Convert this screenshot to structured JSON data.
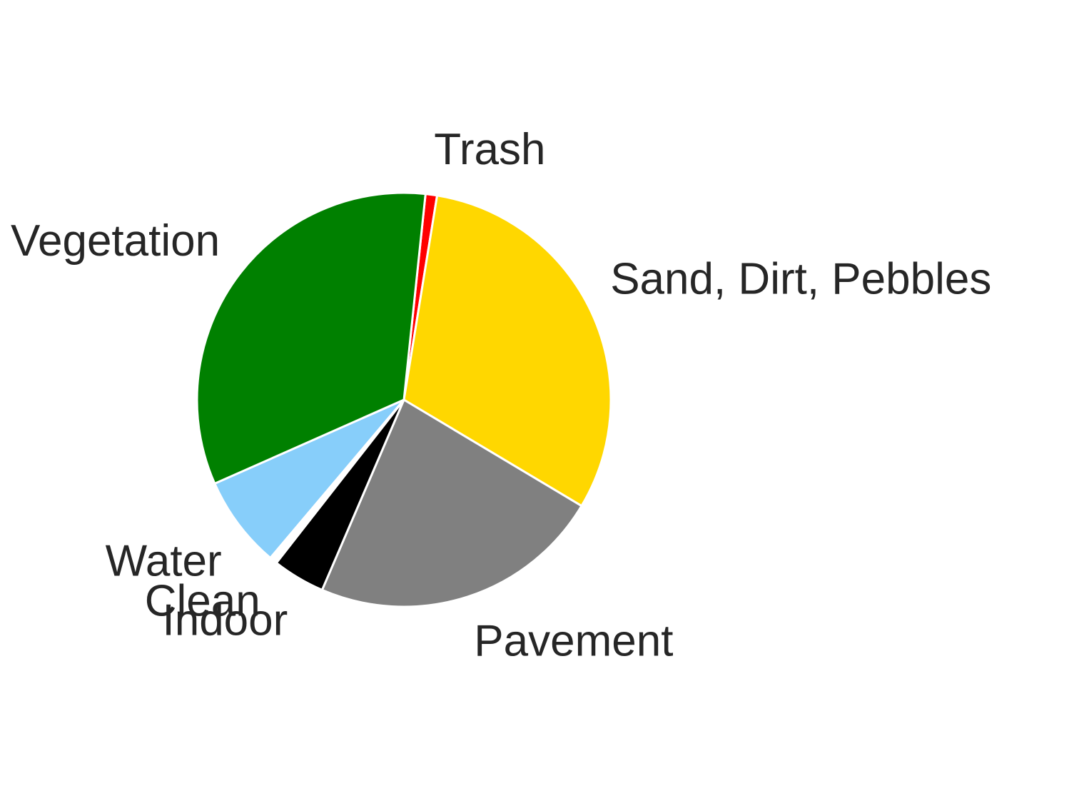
{
  "chart_data": {
    "type": "pie",
    "title": "",
    "start_angle_deg": 84.0,
    "direction": "clockwise",
    "slices": [
      {
        "label": "Trash",
        "value": 0.9,
        "color": "#ff0000"
      },
      {
        "label": "Sand, Dirt, Pebbles",
        "value": 31.0,
        "color": "#ffd700"
      },
      {
        "label": "Pavement",
        "value": 22.9,
        "color": "#808080"
      },
      {
        "label": "Indoor",
        "value": 4.1,
        "color": "#000000"
      },
      {
        "label": "Clean",
        "value": 0.6,
        "color": "#ffffff"
      },
      {
        "label": "Water",
        "value": 7.2,
        "color": "#87cefa"
      },
      {
        "label": "Vegetation",
        "value": 33.3,
        "color": "#008000"
      }
    ],
    "slice_edge_color": "#ffffff"
  }
}
